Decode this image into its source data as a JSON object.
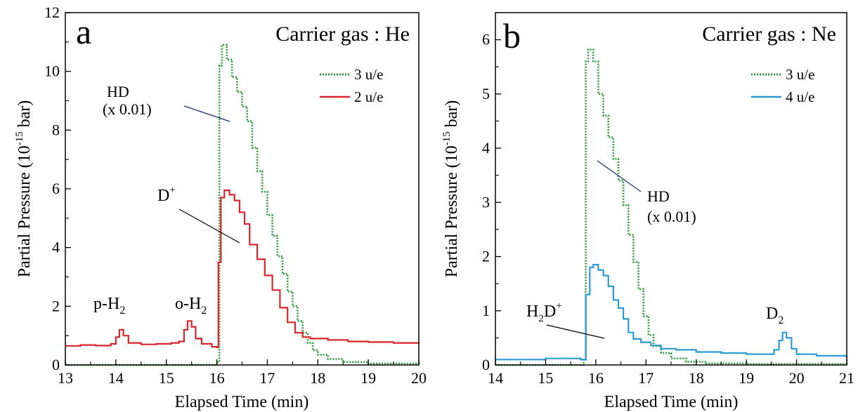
{
  "chart_data": [
    {
      "type": "line",
      "panel_letter": "a",
      "annotation_title": "Carrier gas : He",
      "xlabel": "Elapsed Time (min)",
      "ylabel_main": "Partial Pressure (10",
      "ylabel_exp": "-15",
      "ylabel_tail": " bar)",
      "xlim": [
        13,
        20
      ],
      "ylim": [
        0,
        12
      ],
      "xticks": [
        "13",
        "14",
        "15",
        "16",
        "17",
        "18",
        "19",
        "20"
      ],
      "yticks": [
        "0",
        "2",
        "4",
        "6",
        "8",
        "10",
        "12"
      ],
      "legend": [
        {
          "label": "3 u/e",
          "color": "#2e9a3e",
          "style": "dotted"
        },
        {
          "label": "2 u/e",
          "color": "#d9242b",
          "style": "solid"
        }
      ],
      "annotations": [
        {
          "base": "HD"
        },
        {
          "base": "(x 0.01)"
        },
        {
          "base": "D",
          "sup": "+"
        },
        {
          "base": "p-H",
          "sub": "2"
        },
        {
          "base": "o-H",
          "sub": "2"
        }
      ],
      "series": [
        {
          "name": "3 u/e",
          "color": "#2e9a3e",
          "dash": "2,2",
          "points": [
            [
              13,
              0
            ],
            [
              15.95,
              0
            ],
            [
              16.0,
              0.1
            ],
            [
              16.05,
              10.2
            ],
            [
              16.1,
              10.9
            ],
            [
              16.2,
              10.4
            ],
            [
              16.3,
              9.8
            ],
            [
              16.4,
              9.3
            ],
            [
              16.5,
              8.8
            ],
            [
              16.6,
              8.3
            ],
            [
              16.7,
              7.4
            ],
            [
              16.8,
              6.6
            ],
            [
              16.9,
              5.9
            ],
            [
              17.0,
              5.1
            ],
            [
              17.1,
              4.4
            ],
            [
              17.2,
              3.7
            ],
            [
              17.3,
              3.1
            ],
            [
              17.4,
              2.5
            ],
            [
              17.5,
              2.0
            ],
            [
              17.6,
              1.5
            ],
            [
              17.7,
              1.1
            ],
            [
              17.8,
              0.75
            ],
            [
              17.9,
              0.5
            ],
            [
              18.0,
              0.35
            ],
            [
              18.2,
              0.2
            ],
            [
              18.5,
              0.1
            ],
            [
              19.0,
              0.05
            ],
            [
              20,
              0.02
            ]
          ]
        },
        {
          "name": "2 u/e",
          "color": "#d9242b",
          "dash": "",
          "points": [
            [
              13,
              0.65
            ],
            [
              13.3,
              0.68
            ],
            [
              13.6,
              0.66
            ],
            [
              13.9,
              0.72
            ],
            [
              14.0,
              0.95
            ],
            [
              14.07,
              1.2
            ],
            [
              14.15,
              1.0
            ],
            [
              14.25,
              0.75
            ],
            [
              14.5,
              0.7
            ],
            [
              14.8,
              0.72
            ],
            [
              15.1,
              0.75
            ],
            [
              15.25,
              0.8
            ],
            [
              15.35,
              1.2
            ],
            [
              15.42,
              1.5
            ],
            [
              15.5,
              1.3
            ],
            [
              15.58,
              0.9
            ],
            [
              15.7,
              0.72
            ],
            [
              15.9,
              0.62
            ],
            [
              16.0,
              0.6
            ],
            [
              16.03,
              3.5
            ],
            [
              16.08,
              5.7
            ],
            [
              16.15,
              5.95
            ],
            [
              16.25,
              5.8
            ],
            [
              16.35,
              5.6
            ],
            [
              16.45,
              5.2
            ],
            [
              16.55,
              4.8
            ],
            [
              16.65,
              4.1
            ],
            [
              16.8,
              3.6
            ],
            [
              16.95,
              3.05
            ],
            [
              17.1,
              2.55
            ],
            [
              17.25,
              1.95
            ],
            [
              17.4,
              1.45
            ],
            [
              17.55,
              1.1
            ],
            [
              17.7,
              0.95
            ],
            [
              17.85,
              0.9
            ],
            [
              18.2,
              0.85
            ],
            [
              18.6,
              0.8
            ],
            [
              19.0,
              0.78
            ],
            [
              19.5,
              0.75
            ],
            [
              20,
              0.72
            ]
          ]
        }
      ]
    },
    {
      "type": "line",
      "panel_letter": "b",
      "annotation_title": "Carrier gas : Ne",
      "xlabel": "Elapsed Time (min)",
      "ylabel_main": "Partial Pressure (10",
      "ylabel_exp": "-15",
      "ylabel_tail": " bar)",
      "xlim": [
        14,
        21
      ],
      "ylim": [
        0,
        6.5
      ],
      "xticks": [
        "14",
        "15",
        "16",
        "17",
        "18",
        "19",
        "20",
        "21"
      ],
      "yticks": [
        "0",
        "1",
        "2",
        "3",
        "4",
        "5",
        "6"
      ],
      "legend": [
        {
          "label": "3 u/e",
          "color": "#2e9a3e",
          "style": "dotted"
        },
        {
          "label": "4 u/e",
          "color": "#2b9bd6",
          "style": "solid"
        }
      ],
      "annotations": [
        {
          "base": "HD"
        },
        {
          "base": "(x 0.01)"
        },
        {
          "base": "H",
          "sub": "2",
          "base2": "D",
          "sup": "+"
        },
        {
          "base": "D",
          "sub": "2"
        }
      ],
      "series": [
        {
          "name": "3 u/e",
          "color": "#2e9a3e",
          "dash": "2,2",
          "points": [
            [
              14,
              0
            ],
            [
              15.72,
              0
            ],
            [
              15.76,
              0.1
            ],
            [
              15.8,
              5.6
            ],
            [
              15.85,
              5.82
            ],
            [
              15.95,
              5.6
            ],
            [
              16.05,
              5.0
            ],
            [
              16.15,
              4.6
            ],
            [
              16.25,
              4.2
            ],
            [
              16.35,
              3.8
            ],
            [
              16.45,
              3.4
            ],
            [
              16.55,
              2.95
            ],
            [
              16.65,
              2.4
            ],
            [
              16.75,
              1.9
            ],
            [
              16.85,
              1.4
            ],
            [
              16.95,
              0.9
            ],
            [
              17.05,
              0.55
            ],
            [
              17.15,
              0.35
            ],
            [
              17.3,
              0.22
            ],
            [
              17.5,
              0.12
            ],
            [
              17.8,
              0.06
            ],
            [
              18.2,
              0.03
            ],
            [
              19,
              0.02
            ],
            [
              21,
              0.01
            ]
          ]
        },
        {
          "name": "4 u/e",
          "color": "#2b9bd6",
          "dash": "",
          "points": [
            [
              14,
              0.1
            ],
            [
              14.5,
              0.1
            ],
            [
              15.0,
              0.12
            ],
            [
              15.4,
              0.12
            ],
            [
              15.7,
              0.1
            ],
            [
              15.76,
              0.1
            ],
            [
              15.8,
              1.3
            ],
            [
              15.88,
              1.8
            ],
            [
              15.95,
              1.85
            ],
            [
              16.05,
              1.75
            ],
            [
              16.15,
              1.65
            ],
            [
              16.25,
              1.45
            ],
            [
              16.35,
              1.2
            ],
            [
              16.45,
              1.05
            ],
            [
              16.55,
              0.85
            ],
            [
              16.65,
              0.6
            ],
            [
              16.75,
              0.48
            ],
            [
              16.9,
              0.42
            ],
            [
              17.1,
              0.36
            ],
            [
              17.3,
              0.3
            ],
            [
              17.6,
              0.28
            ],
            [
              18.0,
              0.24
            ],
            [
              18.5,
              0.22
            ],
            [
              19.0,
              0.2
            ],
            [
              19.4,
              0.2
            ],
            [
              19.55,
              0.28
            ],
            [
              19.65,
              0.45
            ],
            [
              19.72,
              0.6
            ],
            [
              19.8,
              0.5
            ],
            [
              19.9,
              0.3
            ],
            [
              20.0,
              0.2
            ],
            [
              20.4,
              0.17
            ],
            [
              21,
              0.14
            ]
          ]
        }
      ]
    }
  ]
}
